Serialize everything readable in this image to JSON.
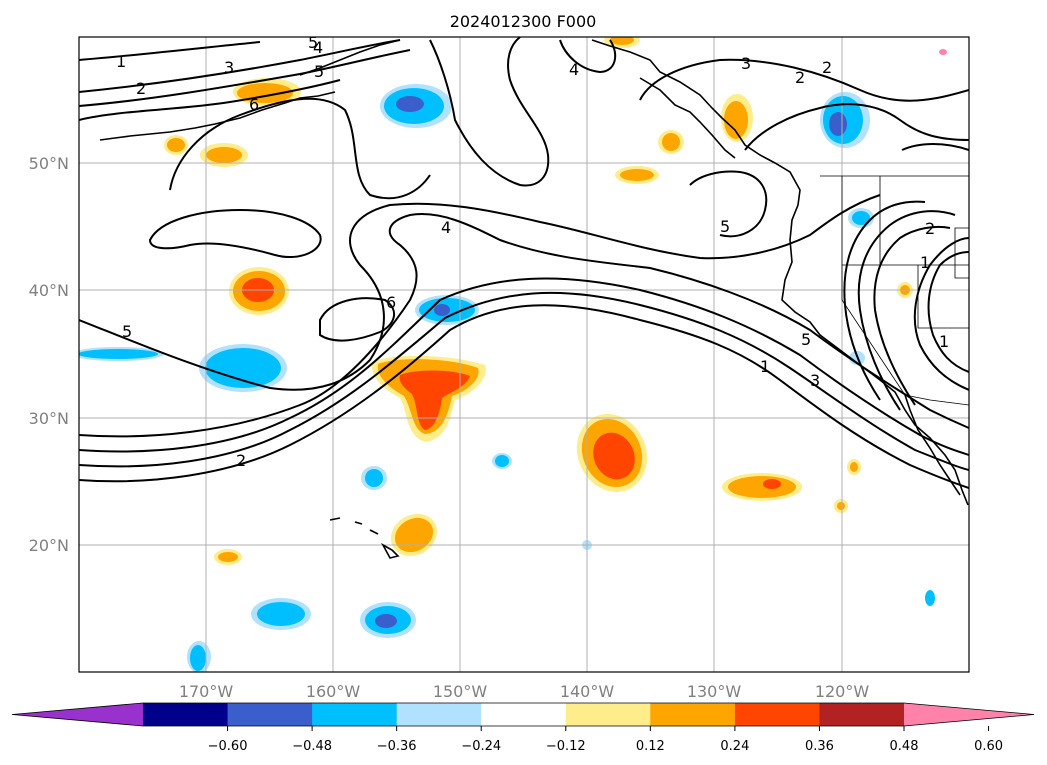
{
  "title": "2024012300 F000",
  "map": {
    "lon_range": [
      -180,
      -110
    ],
    "lat_range": [
      10,
      60
    ],
    "lat_labels": [
      "50°N",
      "40°N",
      "30°N",
      "20°N"
    ],
    "lon_labels": [
      "170°W",
      "160°W",
      "150°W",
      "140°W",
      "130°W",
      "120°W"
    ],
    "grid": true
  },
  "colorbar": {
    "extend": "both",
    "tick_labels": [
      "−0.60",
      "−0.48",
      "−0.36",
      "−0.24",
      "−0.12",
      "0.12",
      "0.24",
      "0.36",
      "0.48",
      "0.60"
    ],
    "colors": [
      "#9932cc",
      "#00008b",
      "#3a5fcd",
      "#00bfff",
      "#b0e2ff",
      "#ffffff",
      "#ffec8b",
      "#ffa500",
      "#ff4500",
      "#b22222",
      "#ff82ab"
    ]
  },
  "contour_labels": [
    "1",
    "2",
    "3",
    "4",
    "5",
    "6",
    "5",
    "2",
    "4",
    "6",
    "5",
    "4",
    "3",
    "2",
    "2",
    "5",
    "5",
    "1",
    "3",
    "1",
    "2",
    "1"
  ],
  "colors": {
    "contour": "#000000",
    "grid": "#b0b0b0",
    "axis_label": "#808080"
  }
}
